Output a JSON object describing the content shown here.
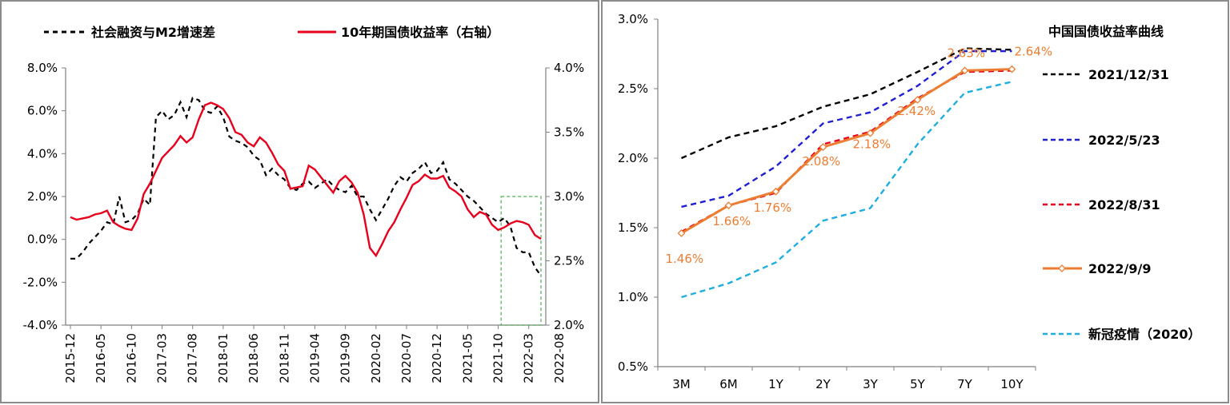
{
  "chart_data": [
    {
      "type": "line",
      "legend": [
        "社会融资与M2增速差",
        "10年期国债收益率（右轴）"
      ],
      "x_ticks": [
        "2015-12",
        "2016-05",
        "2016-10",
        "2017-03",
        "2017-08",
        "2018-01",
        "2018-06",
        "2018-11",
        "2019-04",
        "2019-09",
        "2020-02",
        "2020-07",
        "2020-12",
        "2021-05",
        "2021-10",
        "2022-03",
        "2022-08"
      ],
      "y_left_ticks": [
        "8.0%",
        "6.0%",
        "4.0%",
        "2.0%",
        "0.0%",
        "-2.0%",
        "-4.0%"
      ],
      "y_right_ticks": [
        "4.0%",
        "3.5%",
        "3.0%",
        "2.5%",
        "2.0%"
      ],
      "ylim_left": [
        -4.0,
        8.0
      ],
      "ylim_right": [
        2.0,
        4.0
      ],
      "series": [
        {
          "name": "社会融资与M2增速差",
          "axis": "left",
          "style": "dashed",
          "color": "#000000",
          "values": [
            -0.9,
            -0.9,
            -0.6,
            -0.2,
            0.1,
            0.4,
            0.8,
            0.7,
            2.0,
            0.8,
            0.9,
            1.2,
            1.9,
            1.6,
            5.7,
            6.0,
            5.6,
            5.8,
            6.4,
            5.7,
            6.6,
            6.5,
            6.0,
            5.9,
            6.2,
            5.7,
            4.8,
            4.6,
            4.5,
            4.3,
            3.9,
            3.7,
            3.0,
            3.3,
            3.0,
            2.8,
            2.4,
            2.3,
            2.6,
            2.7,
            2.4,
            2.6,
            2.8,
            2.5,
            2.3,
            2.2,
            2.5,
            2.0,
            2.0,
            1.4,
            0.9,
            1.4,
            1.9,
            2.5,
            2.9,
            2.7,
            3.1,
            3.3,
            3.6,
            3.1,
            3.2,
            3.6,
            2.8,
            2.6,
            2.3,
            2.0,
            1.8,
            1.5,
            1.2,
            1.0,
            0.8,
            1.0,
            0.6,
            -0.4,
            -0.6,
            -0.6,
            -1.3,
            -1.7
          ]
        },
        {
          "name": "10年期国债收益率（右轴）",
          "axis": "right",
          "style": "solid",
          "color": "#E8001C",
          "values": [
            2.84,
            2.82,
            2.83,
            2.84,
            2.86,
            2.87,
            2.89,
            2.8,
            2.77,
            2.75,
            2.74,
            2.83,
            3.02,
            3.1,
            3.2,
            3.3,
            3.35,
            3.4,
            3.47,
            3.42,
            3.46,
            3.6,
            3.71,
            3.73,
            3.71,
            3.68,
            3.61,
            3.5,
            3.48,
            3.42,
            3.39,
            3.46,
            3.42,
            3.34,
            3.25,
            3.2,
            3.06,
            3.07,
            3.08,
            3.24,
            3.21,
            3.15,
            3.09,
            3.03,
            3.12,
            3.16,
            3.11,
            3.03,
            2.86,
            2.6,
            2.54,
            2.63,
            2.73,
            2.8,
            2.9,
            2.99,
            3.09,
            3.12,
            3.17,
            3.14,
            3.14,
            3.16,
            3.07,
            3.04,
            3.0,
            2.9,
            2.84,
            2.88,
            2.86,
            2.78,
            2.74,
            2.76,
            2.79,
            2.81,
            2.8,
            2.78,
            2.7,
            2.67
          ]
        }
      ],
      "annotation": "green dashed box highlighting 2022-03 to 2022-08"
    },
    {
      "type": "line",
      "title": "中国国债收益率曲线",
      "categories": [
        "3M",
        "6M",
        "1Y",
        "2Y",
        "3Y",
        "5Y",
        "7Y",
        "10Y"
      ],
      "y_ticks": [
        "3.0%",
        "2.5%",
        "2.0%",
        "1.5%",
        "1.0%",
        "0.5%"
      ],
      "ylim": [
        0.5,
        3.0
      ],
      "series": [
        {
          "name": "2021/12/31",
          "style": "dashed",
          "color": "#000000",
          "values": [
            2.0,
            2.15,
            2.23,
            2.37,
            2.46,
            2.62,
            2.79,
            2.78
          ]
        },
        {
          "name": "2022/5/23",
          "style": "dashed",
          "color": "#1F1FD6",
          "values": [
            1.65,
            1.73,
            1.94,
            2.25,
            2.33,
            2.52,
            2.77,
            2.77
          ]
        },
        {
          "name": "2022/8/31",
          "style": "dashed",
          "color": "#E8001C",
          "values": [
            1.47,
            1.66,
            1.75,
            2.1,
            2.19,
            2.43,
            2.62,
            2.63
          ]
        },
        {
          "name": "2022/9/9",
          "style": "solid-marker",
          "color": "#ED7D31",
          "values": [
            1.46,
            1.66,
            1.76,
            2.08,
            2.18,
            2.42,
            2.63,
            2.64
          ]
        },
        {
          "name": "新冠疫情（2020）",
          "style": "dashed",
          "color": "#1FAEE0",
          "values": [
            1.0,
            1.1,
            1.25,
            1.55,
            1.64,
            2.1,
            2.47,
            2.55
          ]
        }
      ],
      "data_labels": [
        "1.46%",
        "1.66%",
        "1.76%",
        "2.08%",
        "2.18%",
        "2.42%",
        "2.63%",
        "2.64%"
      ]
    }
  ]
}
